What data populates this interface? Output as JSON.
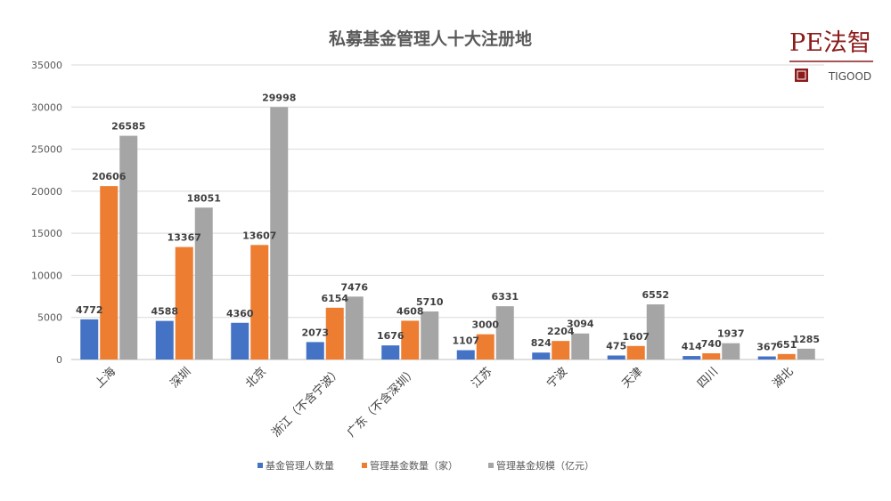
{
  "logo": {
    "name": "PE法智",
    "sub": "TIGOOD",
    "color": "#8c1b1b"
  },
  "chart_data": {
    "type": "bar",
    "title": "私募基金管理人十大注册地",
    "xlabel": "",
    "ylabel": "",
    "ylim": [
      0,
      35000
    ],
    "yticks": [
      0,
      5000,
      10000,
      15000,
      20000,
      25000,
      30000,
      35000
    ],
    "grid": true,
    "legend": "bottom",
    "categories": [
      "上海",
      "深圳",
      "北京",
      "浙江（不含宁波）",
      "广东（不含深圳）",
      "江苏",
      "宁波",
      "天津",
      "四川",
      "湖北"
    ],
    "series": [
      {
        "name": "基金管理人数量",
        "color": "#4472c4",
        "values": [
          4772,
          4588,
          4360,
          2073,
          1676,
          1107,
          824,
          475,
          414,
          367
        ]
      },
      {
        "name": "管理基金数量（家）",
        "color": "#ed7d31",
        "values": [
          20606,
          13367,
          13607,
          6154,
          4608,
          3000,
          2204,
          1607,
          740,
          651
        ]
      },
      {
        "name": "管理基金规模（亿元）",
        "color": "#a5a5a5",
        "values": [
          26585,
          18051,
          29998,
          7476,
          5710,
          6331,
          3094,
          6552,
          1937,
          1285
        ]
      }
    ]
  }
}
